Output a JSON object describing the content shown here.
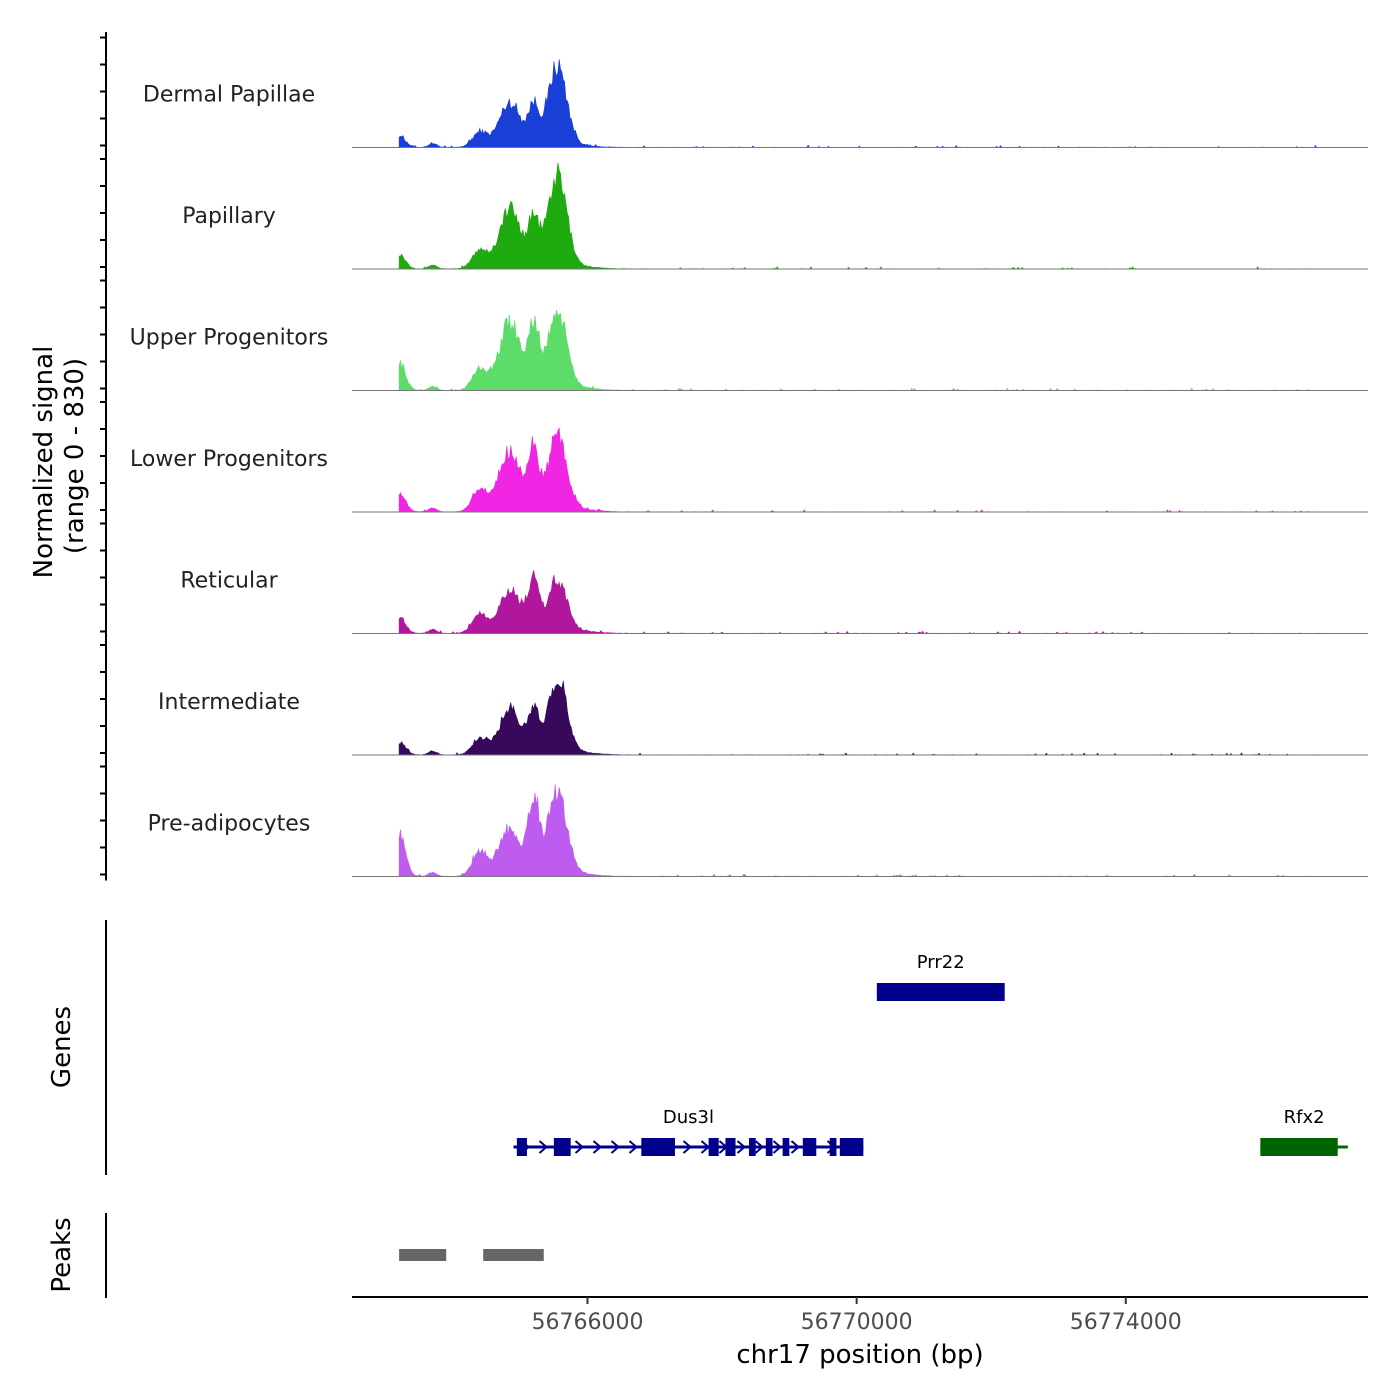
{
  "chart_data": {
    "type": "area",
    "title": "",
    "xlabel": "chr17 position (bp)",
    "ylabel_line1": "Normalized signal",
    "ylabel_line2": "(range 0 - 830)",
    "y_range": [
      0,
      830
    ],
    "x_range": [
      56762500,
      56777600
    ],
    "x_ticks": [
      56766000,
      56770000,
      56774000
    ],
    "x_tick_labels": [
      "56766000",
      "56770000",
      "56774000"
    ],
    "track_scale_max": 830,
    "peak_positions": [
      56763200,
      56763700,
      56764400,
      56764850,
      56765200,
      56765550,
      56765750
    ],
    "series": [
      {
        "name": "Dermal Papillae",
        "color": "#1a3fd6",
        "peak_heights": [
          120,
          40,
          150,
          450,
          380,
          800,
          20
        ]
      },
      {
        "name": "Papillary",
        "color": "#1faa0f",
        "peak_heights": [
          150,
          40,
          190,
          600,
          460,
          910,
          30
        ]
      },
      {
        "name": "Upper Progenitors",
        "color": "#5ddc6a",
        "peak_heights": [
          280,
          40,
          210,
          680,
          600,
          760,
          30
        ]
      },
      {
        "name": "Lower Progenitors",
        "color": "#f026e4",
        "peak_heights": [
          190,
          40,
          220,
          620,
          560,
          720,
          30
        ]
      },
      {
        "name": "Reticular",
        "color": "#b0179d",
        "peak_heights": [
          170,
          40,
          200,
          440,
          500,
          510,
          30
        ]
      },
      {
        "name": "Intermediate",
        "color": "#37085c",
        "peak_heights": [
          130,
          40,
          170,
          460,
          400,
          750,
          30
        ]
      },
      {
        "name": "Pre-adipocytes",
        "color": "#bf5cf0",
        "peak_heights": [
          430,
          40,
          250,
          480,
          750,
          840,
          30
        ]
      }
    ],
    "genes_panel_label": "Genes",
    "peaks_panel_label": "Peaks",
    "genes": [
      {
        "name": "Prr22",
        "color": "#00008b",
        "start": 56770300,
        "end": 56772200,
        "row": 0,
        "exons": [
          [
            56770300,
            56772200
          ]
        ]
      },
      {
        "name": "Dus3l",
        "color": "#00008b",
        "start": 56764900,
        "end": 56770100,
        "row": 1,
        "exons": [
          [
            56764950,
            56765100
          ],
          [
            56765500,
            56765750
          ],
          [
            56766800,
            56767300
          ],
          [
            56767800,
            56767950
          ],
          [
            56768050,
            56768200
          ],
          [
            56768400,
            56768500
          ],
          [
            56768650,
            56768750
          ],
          [
            56768900,
            56769000
          ],
          [
            56769200,
            56769400
          ],
          [
            56769600,
            56769700
          ],
          [
            56769750,
            56770100
          ]
        ]
      },
      {
        "name": "Rfx2",
        "color": "#006400",
        "start": 56776000,
        "end": 56777300,
        "row": 1,
        "exons": [
          [
            56776000,
            56777150
          ]
        ]
      }
    ],
    "peaks": [
      [
        56763200,
        56763900
      ],
      [
        56764450,
        56765350
      ]
    ]
  }
}
